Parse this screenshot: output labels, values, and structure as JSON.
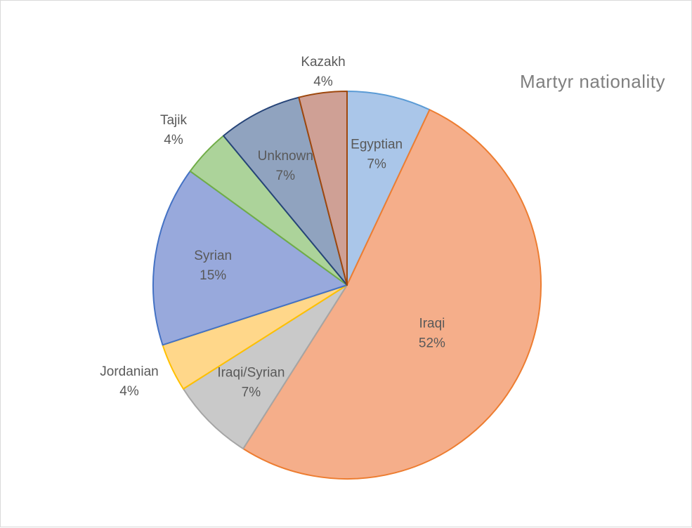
{
  "chart_data": {
    "type": "pie",
    "title": "Martyr nationality",
    "start_angle_deg": 0,
    "direction": "clockwise",
    "slices": [
      {
        "label": "Egyptian",
        "value": 7,
        "percent_label": "7%",
        "fill": "#aac6e9",
        "stroke": "#5b9bd5"
      },
      {
        "label": "Iraqi",
        "value": 52,
        "percent_label": "52%",
        "fill": "#f5ae8a",
        "stroke": "#ed7d31"
      },
      {
        "label": "Iraqi/Syrian",
        "value": 7,
        "percent_label": "7%",
        "fill": "#c9c9c9",
        "stroke": "#a5a5a5"
      },
      {
        "label": "Jordanian",
        "value": 4,
        "percent_label": "4%",
        "fill": "#ffd78a",
        "stroke": "#ffc000"
      },
      {
        "label": "Syrian",
        "value": 15,
        "percent_label": "15%",
        "fill": "#98a9dc",
        "stroke": "#4472c4"
      },
      {
        "label": "Tajik",
        "value": 4,
        "percent_label": "4%",
        "fill": "#acd39a",
        "stroke": "#70ad47"
      },
      {
        "label": "Unknown",
        "value": 7,
        "percent_label": "7%",
        "fill": "#90a3bf",
        "stroke": "#264478"
      },
      {
        "label": "Kazakh",
        "value": 4,
        "percent_label": "4%",
        "fill": "#cfa095",
        "stroke": "#9e480e"
      }
    ]
  }
}
